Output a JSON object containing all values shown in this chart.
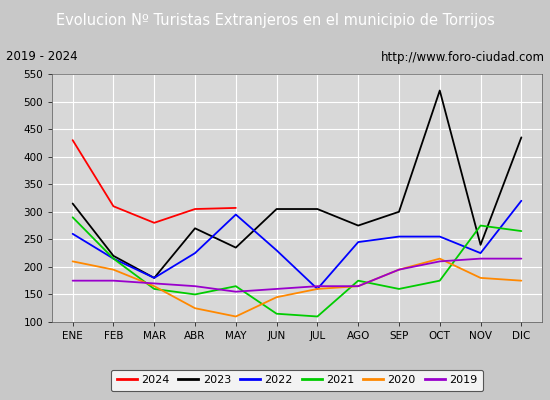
{
  "title": "Evolucion Nº Turistas Extranjeros en el municipio de Torrijos",
  "subtitle_left": "2019 - 2024",
  "subtitle_right": "http://www.foro-ciudad.com",
  "title_bg_color": "#4a7ec7",
  "title_text_color": "#ffffff",
  "plot_bg_color": "#d8d8d8",
  "outer_bg_color": "#c8c8c8",
  "months": [
    "ENE",
    "FEB",
    "MAR",
    "ABR",
    "MAY",
    "JUN",
    "JUL",
    "AGO",
    "SEP",
    "OCT",
    "NOV",
    "DIC"
  ],
  "ylim": [
    100,
    550
  ],
  "yticks": [
    100,
    150,
    200,
    250,
    300,
    350,
    400,
    450,
    500,
    550
  ],
  "series": {
    "2024": {
      "color": "#ff0000",
      "data": [
        430,
        310,
        280,
        305,
        307,
        null,
        null,
        null,
        null,
        null,
        null,
        null
      ]
    },
    "2023": {
      "color": "#000000",
      "data": [
        315,
        220,
        180,
        270,
        235,
        305,
        305,
        275,
        300,
        520,
        240,
        435
      ]
    },
    "2022": {
      "color": "#0000ff",
      "data": [
        260,
        215,
        180,
        225,
        295,
        230,
        160,
        245,
        255,
        255,
        225,
        320
      ]
    },
    "2021": {
      "color": "#00cc00",
      "data": [
        290,
        215,
        160,
        150,
        165,
        115,
        110,
        175,
        160,
        175,
        275,
        265
      ]
    },
    "2020": {
      "color": "#ff8800",
      "data": [
        210,
        195,
        165,
        125,
        110,
        145,
        160,
        165,
        195,
        215,
        180,
        175
      ]
    },
    "2019": {
      "color": "#9900cc",
      "data": [
        175,
        175,
        170,
        165,
        155,
        160,
        165,
        165,
        195,
        210,
        215,
        215
      ]
    }
  },
  "legend_order": [
    "2024",
    "2023",
    "2022",
    "2021",
    "2020",
    "2019"
  ],
  "fig_width": 5.5,
  "fig_height": 4.0,
  "dpi": 100
}
